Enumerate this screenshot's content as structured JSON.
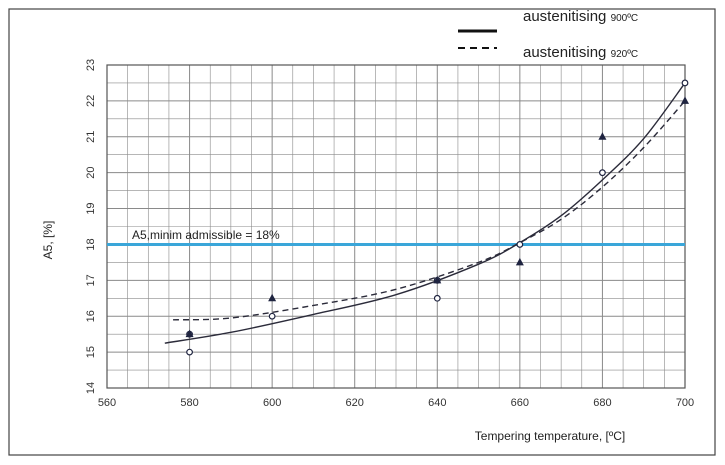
{
  "colors": {
    "grid": "#8a8a8a",
    "curve": "#2b2b3a",
    "marker": "#1f2440",
    "threshold": "#3aa6d9",
    "plot_bg": "#ffffff"
  },
  "chart_data": {
    "type": "line",
    "xlabel": "Tempering temperature, [ºC]",
    "ylabel": "A5, [%]",
    "xlim": [
      560,
      700
    ],
    "ylim": [
      14,
      23
    ],
    "x_ticks": [
      "560",
      "580",
      "600",
      "620",
      "640",
      "660",
      "680",
      "700"
    ],
    "y_ticks": [
      "14",
      "15",
      "16",
      "17",
      "18",
      "19",
      "20",
      "21",
      "22",
      "23"
    ],
    "grid": true,
    "legend_position": "top-right",
    "legend": [
      {
        "line": "solid",
        "label": "austenitising",
        "temp": "900ºC"
      },
      {
        "line": "dashed",
        "label": "austenitising",
        "temp": "920ºC"
      }
    ],
    "series": [
      {
        "style": "solid",
        "curve": [
          [
            574,
            15.25
          ],
          [
            590,
            15.55
          ],
          [
            610,
            16.05
          ],
          [
            630,
            16.6
          ],
          [
            650,
            17.45
          ],
          [
            660,
            18.05
          ],
          [
            670,
            18.8
          ],
          [
            680,
            19.8
          ],
          [
            690,
            20.95
          ],
          [
            700,
            22.5
          ]
        ],
        "points_marker": "circle",
        "points": [
          [
            580,
            15.0
          ],
          [
            580,
            15.5
          ],
          [
            600,
            16.0
          ],
          [
            640,
            16.5
          ],
          [
            640,
            17.0
          ],
          [
            660,
            18.0
          ],
          [
            680,
            20.0
          ],
          [
            700,
            22.5
          ]
        ]
      },
      {
        "style": "dashed",
        "curve": [
          [
            576,
            15.9
          ],
          [
            590,
            15.95
          ],
          [
            610,
            16.3
          ],
          [
            630,
            16.75
          ],
          [
            650,
            17.5
          ],
          [
            660,
            18.05
          ],
          [
            670,
            18.7
          ],
          [
            680,
            19.6
          ],
          [
            690,
            20.7
          ],
          [
            700,
            22.0
          ]
        ],
        "points_marker": "triangle",
        "points": [
          [
            580,
            15.5
          ],
          [
            600,
            16.5
          ],
          [
            640,
            17.0
          ],
          [
            660,
            17.5
          ],
          [
            680,
            21.0
          ],
          [
            700,
            22.0
          ]
        ]
      }
    ],
    "threshold": {
      "y": 18,
      "label": "A5,minim admissible = 18%"
    }
  }
}
